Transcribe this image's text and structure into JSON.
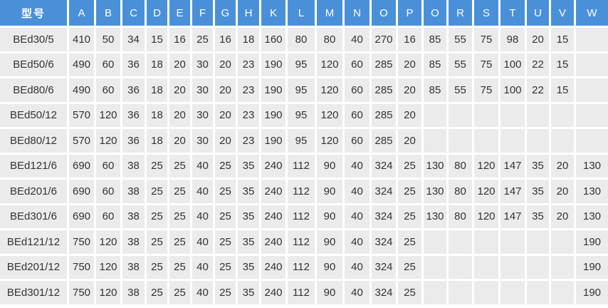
{
  "table": {
    "model_header": "型号",
    "columns": [
      "A",
      "B",
      "C",
      "D",
      "E",
      "F",
      "G",
      "H",
      "K",
      "L",
      "M",
      "N",
      "O",
      "P",
      "O",
      "R",
      "S",
      "T",
      "U",
      "V",
      "W"
    ],
    "rows": [
      {
        "model": "BEd30/5",
        "values": [
          "410",
          "50",
          "34",
          "15",
          "16",
          "25",
          "16",
          "18",
          "160",
          "80",
          "80",
          "40",
          "270",
          "16",
          "85",
          "55",
          "75",
          "98",
          "20",
          "15",
          ""
        ]
      },
      {
        "model": "BEd50/6",
        "values": [
          "490",
          "60",
          "36",
          "18",
          "20",
          "30",
          "20",
          "23",
          "190",
          "95",
          "120",
          "60",
          "285",
          "20",
          "85",
          "55",
          "75",
          "100",
          "22",
          "15",
          ""
        ]
      },
      {
        "model": "BEd80/6",
        "values": [
          "490",
          "60",
          "36",
          "18",
          "20",
          "30",
          "20",
          "23",
          "190",
          "95",
          "120",
          "60",
          "285",
          "20",
          "85",
          "55",
          "75",
          "100",
          "22",
          "15",
          ""
        ]
      },
      {
        "model": "BEd50/12",
        "values": [
          "570",
          "120",
          "36",
          "18",
          "20",
          "30",
          "20",
          "23",
          "190",
          "95",
          "120",
          "60",
          "285",
          "20",
          "",
          "",
          "",
          "",
          "",
          "",
          ""
        ]
      },
      {
        "model": "BEd80/12",
        "values": [
          "570",
          "120",
          "36",
          "18",
          "20",
          "30",
          "20",
          "23",
          "190",
          "95",
          "120",
          "60",
          "285",
          "20",
          "",
          "",
          "",
          "",
          "",
          "",
          ""
        ]
      },
      {
        "model": "BEd121/6",
        "values": [
          "690",
          "60",
          "38",
          "25",
          "25",
          "40",
          "25",
          "35",
          "240",
          "112",
          "90",
          "40",
          "324",
          "25",
          "130",
          "80",
          "120",
          "147",
          "35",
          "20",
          "130"
        ]
      },
      {
        "model": "BEd201/6",
        "values": [
          "690",
          "60",
          "38",
          "25",
          "25",
          "40",
          "25",
          "35",
          "240",
          "112",
          "90",
          "40",
          "324",
          "25",
          "130",
          "80",
          "120",
          "147",
          "35",
          "20",
          "130"
        ]
      },
      {
        "model": "BEd301/6",
        "values": [
          "690",
          "60",
          "38",
          "25",
          "25",
          "40",
          "25",
          "35",
          "240",
          "112",
          "90",
          "40",
          "324",
          "25",
          "130",
          "80",
          "120",
          "147",
          "35",
          "20",
          "130"
        ]
      },
      {
        "model": "BEd121/12",
        "values": [
          "750",
          "120",
          "38",
          "25",
          "25",
          "40",
          "25",
          "35",
          "240",
          "112",
          "90",
          "40",
          "324",
          "25",
          "",
          "",
          "",
          "",
          "",
          "",
          "190"
        ]
      },
      {
        "model": "BEd201/12",
        "values": [
          "750",
          "120",
          "38",
          "25",
          "25",
          "40",
          "25",
          "35",
          "240",
          "112",
          "90",
          "40",
          "324",
          "25",
          "",
          "",
          "",
          "",
          "",
          "",
          "190"
        ]
      },
      {
        "model": "BEd301/12",
        "values": [
          "750",
          "120",
          "38",
          "25",
          "25",
          "40",
          "25",
          "35",
          "240",
          "112",
          "90",
          "40",
          "324",
          "25",
          "",
          "",
          "",
          "",
          "",
          "",
          "190"
        ]
      }
    ]
  },
  "colors": {
    "header_bg": "#4a90d9",
    "header_text": "#ffffff",
    "row_bg": "#ebebeb",
    "cell_text": "#333333"
  }
}
